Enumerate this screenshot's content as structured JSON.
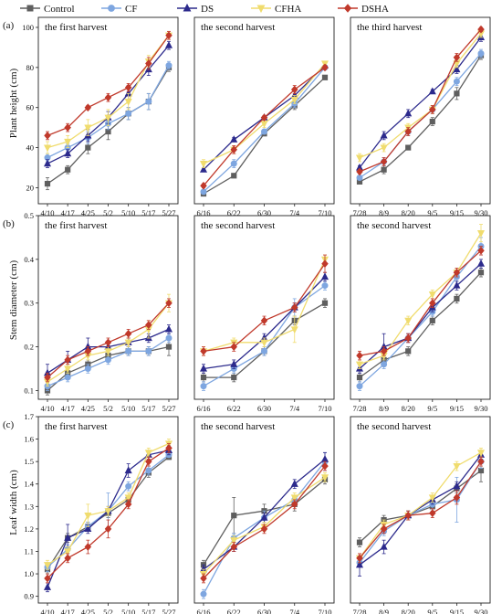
{
  "legend": {
    "placement": "top",
    "entries": [
      {
        "name": "Control",
        "color": "#5f5f5f",
        "marker": "square"
      },
      {
        "name": "CF",
        "color": "#7ea6e0",
        "marker": "circle"
      },
      {
        "name": "DS",
        "color": "#2c2a8c",
        "marker": "triangle"
      },
      {
        "name": "CFHA",
        "color": "#f0dc6e",
        "marker": "triangle-down"
      },
      {
        "name": "DSHA",
        "color": "#c0392b",
        "marker": "diamond"
      }
    ]
  },
  "rows": [
    {
      "panel_label": "(a)",
      "ylabel": "Plant height (cm)"
    },
    {
      "panel_label": "(b)",
      "ylabel": "Stem diameter (cm)"
    },
    {
      "panel_label": "(c)",
      "ylabel": "Leaf width (cm)"
    }
  ],
  "chart_data": [
    {
      "type": "line",
      "row": 0,
      "col": 0,
      "title": "the first harvest",
      "categories": [
        "4/10",
        "4/17",
        "4/25",
        "5/2",
        "5/10",
        "5/17",
        "5/27"
      ],
      "ylim": [
        12,
        105
      ],
      "yticks": [
        20,
        40,
        60,
        80,
        100
      ],
      "grid": false,
      "series": [
        {
          "name": "Control",
          "values": [
            22,
            29,
            40,
            48,
            57,
            63,
            80
          ],
          "errors": [
            3,
            2,
            3,
            4,
            3,
            4,
            2
          ]
        },
        {
          "name": "CF",
          "values": [
            35,
            40,
            45,
            52,
            57,
            63,
            81
          ],
          "errors": [
            2,
            2,
            3,
            3,
            3,
            4,
            2
          ]
        },
        {
          "name": "DS",
          "values": [
            32,
            37,
            46,
            55,
            67,
            79,
            91
          ],
          "errors": [
            2,
            2,
            3,
            3,
            4,
            3,
            2
          ]
        },
        {
          "name": "CFHA",
          "values": [
            40,
            43,
            50,
            55,
            63,
            83,
            96
          ],
          "errors": [
            3,
            3,
            4,
            4,
            4,
            3,
            2
          ]
        },
        {
          "name": "DSHA",
          "values": [
            46,
            50,
            60,
            65,
            70,
            82,
            96
          ],
          "errors": [
            2,
            2,
            1,
            2,
            2,
            3,
            2
          ]
        }
      ]
    },
    {
      "type": "line",
      "row": 0,
      "col": 1,
      "title": "the second harvest",
      "categories": [
        "6/16",
        "6/22",
        "6/30",
        "7/4",
        "7/10"
      ],
      "ylim": [
        12,
        105
      ],
      "grid": false,
      "series": [
        {
          "name": "Control",
          "values": [
            17,
            26,
            47,
            61,
            75
          ],
          "errors": [
            1,
            1,
            1,
            2,
            1
          ]
        },
        {
          "name": "CF",
          "values": [
            18,
            32,
            48,
            62,
            80
          ],
          "errors": [
            1,
            2,
            1,
            2,
            1
          ]
        },
        {
          "name": "DS",
          "values": [
            29,
            44,
            55,
            66,
            81
          ],
          "errors": [
            1,
            1,
            1,
            2,
            1
          ]
        },
        {
          "name": "CFHA",
          "values": [
            32,
            39,
            52,
            64,
            82
          ],
          "errors": [
            2,
            2,
            2,
            2,
            1
          ]
        },
        {
          "name": "DSHA",
          "values": [
            21,
            39,
            55,
            69,
            80
          ],
          "errors": [
            1,
            2,
            1,
            2,
            1
          ]
        }
      ]
    },
    {
      "type": "line",
      "row": 0,
      "col": 2,
      "title": "the third harvest",
      "categories": [
        "7/28",
        "8/9",
        "8/20",
        "9/5",
        "9/15",
        "9/30"
      ],
      "ylim": [
        12,
        105
      ],
      "grid": false,
      "series": [
        {
          "name": "Control",
          "values": [
            23,
            29,
            40,
            53,
            67,
            86
          ],
          "errors": [
            1,
            2,
            1,
            2,
            3,
            2
          ]
        },
        {
          "name": "CF",
          "values": [
            25,
            33,
            48,
            59,
            73,
            87
          ],
          "errors": [
            1,
            2,
            2,
            2,
            2,
            2
          ]
        },
        {
          "name": "DS",
          "values": [
            30,
            46,
            57,
            68,
            79,
            95
          ],
          "errors": [
            1,
            2,
            2,
            1,
            2,
            2
          ]
        },
        {
          "name": "CFHA",
          "values": [
            35,
            40,
            50,
            59,
            82,
            97
          ],
          "errors": [
            2,
            2,
            2,
            2,
            2,
            2
          ]
        },
        {
          "name": "DSHA",
          "values": [
            28,
            33,
            48,
            59,
            85,
            99
          ],
          "errors": [
            1,
            2,
            2,
            2,
            2,
            1
          ]
        }
      ]
    },
    {
      "type": "line",
      "row": 1,
      "col": 0,
      "title": "the first harvest",
      "categories": [
        "4/10",
        "4/17",
        "4/25",
        "5/2",
        "5/10",
        "5/17",
        "5/27"
      ],
      "ylim": [
        0.08,
        0.5
      ],
      "yticks": [
        0.1,
        0.2,
        0.3,
        0.4,
        0.5
      ],
      "grid": false,
      "series": [
        {
          "name": "Control",
          "values": [
            0.1,
            0.14,
            0.16,
            0.18,
            0.19,
            0.19,
            0.2
          ],
          "errors": [
            0.01,
            0.01,
            0.01,
            0.01,
            0.01,
            0.01,
            0.02
          ]
        },
        {
          "name": "CF",
          "values": [
            0.11,
            0.13,
            0.15,
            0.17,
            0.19,
            0.19,
            0.22
          ],
          "errors": [
            0.01,
            0.01,
            0.01,
            0.01,
            0.01,
            0.01,
            0.01
          ]
        },
        {
          "name": "DS",
          "values": [
            0.14,
            0.17,
            0.2,
            0.2,
            0.21,
            0.22,
            0.24
          ],
          "errors": [
            0.02,
            0.02,
            0.02,
            0.01,
            0.01,
            0.01,
            0.01
          ]
        },
        {
          "name": "CFHA",
          "values": [
            0.12,
            0.15,
            0.18,
            0.19,
            0.21,
            0.24,
            0.3
          ],
          "errors": [
            0.01,
            0.01,
            0.01,
            0.01,
            0.01,
            0.02,
            0.02
          ]
        },
        {
          "name": "DSHA",
          "values": [
            0.13,
            0.17,
            0.19,
            0.21,
            0.23,
            0.25,
            0.3
          ],
          "errors": [
            0.01,
            0.01,
            0.01,
            0.01,
            0.01,
            0.01,
            0.01
          ]
        }
      ]
    },
    {
      "type": "line",
      "row": 1,
      "col": 1,
      "title": "the second harvest",
      "categories": [
        "6/16",
        "6/22",
        "6/30",
        "7/4",
        "7/10"
      ],
      "ylim": [
        0.08,
        0.5
      ],
      "grid": false,
      "series": [
        {
          "name": "Control",
          "values": [
            0.13,
            0.13,
            0.19,
            0.26,
            0.3
          ],
          "errors": [
            0.01,
            0.01,
            0.01,
            0.01,
            0.01
          ]
        },
        {
          "name": "CF",
          "values": [
            0.11,
            0.15,
            0.19,
            0.29,
            0.34
          ],
          "errors": [
            0.01,
            0.01,
            0.01,
            0.02,
            0.01
          ]
        },
        {
          "name": "DS",
          "values": [
            0.15,
            0.16,
            0.22,
            0.29,
            0.36
          ],
          "errors": [
            0.01,
            0.01,
            0.01,
            0.01,
            0.01
          ]
        },
        {
          "name": "CFHA",
          "values": [
            0.19,
            0.21,
            0.21,
            0.24,
            0.4
          ],
          "errors": [
            0.01,
            0.01,
            0.01,
            0.03,
            0.01
          ]
        },
        {
          "name": "DSHA",
          "values": [
            0.19,
            0.2,
            0.26,
            0.29,
            0.39
          ],
          "errors": [
            0.01,
            0.01,
            0.01,
            0.01,
            0.02
          ]
        }
      ]
    },
    {
      "type": "line",
      "row": 1,
      "col": 2,
      "title": "the second harvest",
      "categories": [
        "7/28",
        "8/9",
        "8/20",
        "9/5",
        "9/15",
        "9/30"
      ],
      "ylim": [
        0.08,
        0.5
      ],
      "grid": false,
      "series": [
        {
          "name": "Control",
          "values": [
            0.13,
            0.17,
            0.19,
            0.26,
            0.31,
            0.37
          ],
          "errors": [
            0.01,
            0.01,
            0.01,
            0.01,
            0.01,
            0.01
          ]
        },
        {
          "name": "CF",
          "values": [
            0.11,
            0.16,
            0.22,
            0.28,
            0.36,
            0.43
          ],
          "errors": [
            0.01,
            0.01,
            0.01,
            0.01,
            0.01,
            0.02
          ]
        },
        {
          "name": "DS",
          "values": [
            0.15,
            0.2,
            0.22,
            0.29,
            0.34,
            0.39
          ],
          "errors": [
            0.01,
            0.03,
            0.01,
            0.01,
            0.01,
            0.01
          ]
        },
        {
          "name": "CFHA",
          "values": [
            0.16,
            0.18,
            0.26,
            0.32,
            0.37,
            0.46
          ],
          "errors": [
            0.01,
            0.01,
            0.01,
            0.01,
            0.01,
            0.02
          ]
        },
        {
          "name": "DSHA",
          "values": [
            0.18,
            0.19,
            0.22,
            0.3,
            0.37,
            0.42
          ],
          "errors": [
            0.01,
            0.01,
            0.01,
            0.01,
            0.01,
            0.01
          ]
        }
      ]
    },
    {
      "type": "line",
      "row": 2,
      "col": 0,
      "title": "the first harvest",
      "categories": [
        "4/10",
        "4/17",
        "4/25",
        "5/2",
        "5/10",
        "5/17",
        "5/27"
      ],
      "ylim": [
        0.87,
        1.7
      ],
      "yticks": [
        0.9,
        1.0,
        1.1,
        1.2,
        1.3,
        1.4,
        1.5,
        1.6,
        1.7
      ],
      "grid": false,
      "series": [
        {
          "name": "Control",
          "values": [
            1.02,
            1.16,
            1.21,
            1.27,
            1.33,
            1.45,
            1.52
          ],
          "errors": [
            0.02,
            0.02,
            0.02,
            0.02,
            0.02,
            0.02,
            0.01
          ]
        },
        {
          "name": "CF",
          "values": [
            1.03,
            1.11,
            1.21,
            1.28,
            1.39,
            1.46,
            1.53
          ],
          "errors": [
            0.02,
            0.02,
            0.02,
            0.08,
            0.02,
            0.02,
            0.01
          ]
        },
        {
          "name": "DS",
          "values": [
            0.94,
            1.16,
            1.2,
            1.28,
            1.46,
            1.53,
            1.55
          ],
          "errors": [
            0.02,
            0.06,
            0.02,
            0.02,
            0.03,
            0.02,
            0.02
          ]
        },
        {
          "name": "CFHA",
          "values": [
            1.04,
            1.1,
            1.26,
            1.28,
            1.34,
            1.54,
            1.58
          ],
          "errors": [
            0.02,
            0.02,
            0.05,
            0.02,
            0.02,
            0.02,
            0.02
          ]
        },
        {
          "name": "DSHA",
          "values": [
            0.98,
            1.07,
            1.12,
            1.2,
            1.31,
            1.5,
            1.56
          ],
          "errors": [
            0.02,
            0.02,
            0.03,
            0.04,
            0.02,
            0.02,
            0.02
          ]
        }
      ]
    },
    {
      "type": "line",
      "row": 2,
      "col": 1,
      "title": "the second harvest",
      "categories": [
        "6/16",
        "6/22",
        "6/30",
        "7/4",
        "7/10"
      ],
      "ylim": [
        0.87,
        1.7
      ],
      "grid": false,
      "series": [
        {
          "name": "Control",
          "values": [
            1.04,
            1.26,
            1.28,
            1.31,
            1.42
          ],
          "errors": [
            0.02,
            0.08,
            0.03,
            0.03,
            0.02
          ]
        },
        {
          "name": "CF",
          "values": [
            0.91,
            1.16,
            1.25,
            1.33,
            1.5
          ],
          "errors": [
            0.02,
            0.02,
            0.03,
            0.02,
            0.04
          ]
        },
        {
          "name": "DS",
          "values": [
            1.02,
            1.12,
            1.25,
            1.4,
            1.51
          ],
          "errors": [
            0.02,
            0.02,
            0.02,
            0.02,
            0.03
          ]
        },
        {
          "name": "CFHA",
          "values": [
            1.0,
            1.15,
            1.21,
            1.34,
            1.43
          ],
          "errors": [
            0.02,
            0.02,
            0.02,
            0.02,
            0.02
          ]
        },
        {
          "name": "DSHA",
          "values": [
            0.98,
            1.12,
            1.2,
            1.31,
            1.48
          ],
          "errors": [
            0.02,
            0.02,
            0.02,
            0.02,
            0.02
          ]
        }
      ]
    },
    {
      "type": "line",
      "row": 2,
      "col": 2,
      "title": "the second harvest",
      "categories": [
        "7/28",
        "8/9",
        "8/20",
        "9/5",
        "9/15",
        "9/30"
      ],
      "ylim": [
        0.87,
        1.7
      ],
      "grid": false,
      "series": [
        {
          "name": "Control",
          "values": [
            1.14,
            1.24,
            1.26,
            1.3,
            1.38,
            1.46
          ],
          "errors": [
            0.02,
            0.02,
            0.02,
            0.02,
            0.02,
            0.05
          ]
        },
        {
          "name": "CF",
          "values": [
            1.05,
            1.19,
            1.26,
            1.31,
            1.33,
            1.5
          ],
          "errors": [
            0.02,
            0.02,
            0.02,
            0.02,
            0.1,
            0.03
          ]
        },
        {
          "name": "DS",
          "values": [
            1.04,
            1.12,
            1.26,
            1.33,
            1.39,
            1.53
          ],
          "errors": [
            0.05,
            0.03,
            0.02,
            0.02,
            0.02,
            0.02
          ]
        },
        {
          "name": "CFHA",
          "values": [
            1.07,
            1.22,
            1.26,
            1.34,
            1.48,
            1.54
          ],
          "errors": [
            0.02,
            0.02,
            0.02,
            0.02,
            0.02,
            0.02
          ]
        },
        {
          "name": "DSHA",
          "values": [
            1.07,
            1.2,
            1.26,
            1.27,
            1.34,
            1.5
          ],
          "errors": [
            0.02,
            0.02,
            0.02,
            0.02,
            0.03,
            0.02
          ]
        }
      ]
    }
  ]
}
